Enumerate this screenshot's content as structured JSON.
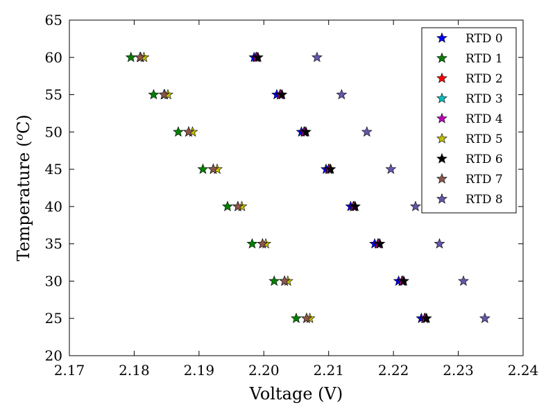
{
  "chart_data": {
    "type": "scatter",
    "xlabel": "Voltage (V)",
    "ylabel_main": "Temperature (",
    "ylabel_super": "o",
    "ylabel_unit": "C)",
    "xlim": [
      2.17,
      2.24
    ],
    "ylim": [
      20,
      65
    ],
    "xticks": [
      2.17,
      2.18,
      2.19,
      2.2,
      2.21,
      2.22,
      2.23,
      2.24
    ],
    "xtick_labels": [
      "2.17",
      "2.18",
      "2.19",
      "2.20",
      "2.21",
      "2.22",
      "2.23",
      "2.24"
    ],
    "yticks": [
      20,
      25,
      30,
      35,
      40,
      45,
      50,
      55,
      60,
      65
    ],
    "ytick_labels": [
      "20",
      "25",
      "30",
      "35",
      "40",
      "45",
      "50",
      "55",
      "60",
      "65"
    ],
    "grid": false,
    "legend_position": "top-right",
    "marker": "star",
    "series": [
      {
        "name": "RTD 0",
        "color": "#0000ff",
        "points": [
          [
            2.1985,
            60
          ],
          [
            2.202,
            55
          ],
          [
            2.2058,
            50
          ],
          [
            2.2096,
            45
          ],
          [
            2.2134,
            40
          ],
          [
            2.2171,
            35
          ],
          [
            2.2208,
            30
          ],
          [
            2.2243,
            25
          ]
        ]
      },
      {
        "name": "RTD 1",
        "color": "#008000",
        "points": [
          [
            2.1795,
            60
          ],
          [
            2.183,
            55
          ],
          [
            2.1868,
            50
          ],
          [
            2.1906,
            45
          ],
          [
            2.1944,
            40
          ],
          [
            2.1982,
            35
          ],
          [
            2.2016,
            30
          ],
          [
            2.205,
            25
          ]
        ]
      },
      {
        "name": "RTD 2",
        "color": "#ff0000",
        "points": [
          [
            2.1988,
            60
          ],
          [
            2.2025,
            55
          ],
          [
            2.2062,
            50
          ],
          [
            2.21,
            45
          ],
          [
            2.2138,
            40
          ],
          [
            2.2176,
            35
          ],
          [
            2.2213,
            30
          ],
          [
            2.2248,
            25
          ]
        ]
      },
      {
        "name": "RTD 3",
        "color": "#00bfbf",
        "points": [
          [
            2.181,
            60
          ],
          [
            2.1847,
            55
          ],
          [
            2.1884,
            50
          ],
          [
            2.1922,
            45
          ],
          [
            2.196,
            40
          ],
          [
            2.1998,
            35
          ],
          [
            2.2032,
            30
          ],
          [
            2.2066,
            25
          ]
        ]
      },
      {
        "name": "RTD 4",
        "color": "#bf00bf",
        "points": [
          [
            2.1989,
            60
          ],
          [
            2.2026,
            55
          ],
          [
            2.2063,
            50
          ],
          [
            2.2101,
            45
          ],
          [
            2.2139,
            40
          ],
          [
            2.2177,
            35
          ],
          [
            2.2214,
            30
          ],
          [
            2.2249,
            25
          ]
        ]
      },
      {
        "name": "RTD 5",
        "color": "#bfbf00",
        "points": [
          [
            2.1815,
            60
          ],
          [
            2.1852,
            55
          ],
          [
            2.189,
            50
          ],
          [
            2.1928,
            45
          ],
          [
            2.1966,
            40
          ],
          [
            2.2003,
            35
          ],
          [
            2.2037,
            30
          ],
          [
            2.2071,
            25
          ]
        ]
      },
      {
        "name": "RTD 6",
        "color": "#000000",
        "points": [
          [
            2.1991,
            60
          ],
          [
            2.2028,
            55
          ],
          [
            2.2065,
            50
          ],
          [
            2.2103,
            45
          ],
          [
            2.2141,
            40
          ],
          [
            2.2179,
            35
          ],
          [
            2.2216,
            30
          ],
          [
            2.2251,
            25
          ]
        ]
      },
      {
        "name": "RTD 7",
        "color": "#8c564b",
        "points": [
          [
            2.1809,
            60
          ],
          [
            2.1846,
            55
          ],
          [
            2.1884,
            50
          ],
          [
            2.1922,
            45
          ],
          [
            2.196,
            40
          ],
          [
            2.1998,
            35
          ],
          [
            2.2032,
            30
          ],
          [
            2.2066,
            25
          ]
        ]
      },
      {
        "name": "RTD 8",
        "color": "#6655aa",
        "points": [
          [
            2.2082,
            60
          ],
          [
            2.212,
            55
          ],
          [
            2.2159,
            50
          ],
          [
            2.2196,
            45
          ],
          [
            2.2234,
            40
          ],
          [
            2.2271,
            35
          ],
          [
            2.2308,
            30
          ],
          [
            2.2341,
            25
          ]
        ]
      }
    ]
  }
}
